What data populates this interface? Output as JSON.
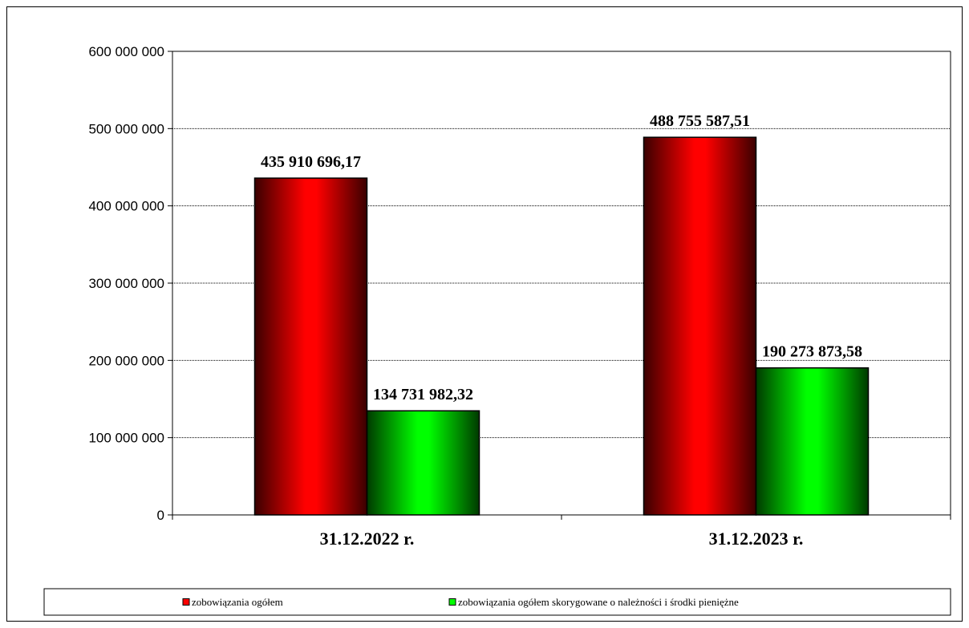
{
  "chart_data": {
    "type": "bar",
    "categories": [
      "31.12.2022 r.",
      "31.12.2023 r."
    ],
    "series": [
      {
        "name": "zobowiązania ogółem",
        "color": "#ff0000",
        "values": [
          435910696.17,
          488755587.51
        ],
        "labels": [
          "435 910 696,17",
          "488 755 587,51"
        ]
      },
      {
        "name": "zobowiązania ogółem skorygowane o należności i środki pieniężne",
        "color": "#00ff00",
        "values": [
          134731982.32,
          190273873.58
        ],
        "labels": [
          "134 731 982,32",
          "190 273 873,58"
        ]
      }
    ],
    "ylim": [
      0,
      600000000
    ],
    "yticks": [
      0,
      100000000,
      200000000,
      300000000,
      400000000,
      500000000,
      600000000
    ],
    "ytick_labels": [
      "0",
      "100 000 000",
      "200 000 000",
      "300 000 000",
      "400 000 000",
      "500 000 000",
      "600 000 000"
    ],
    "grid": true,
    "legend": "bottom",
    "title": "",
    "xlabel": "",
    "ylabel": ""
  }
}
